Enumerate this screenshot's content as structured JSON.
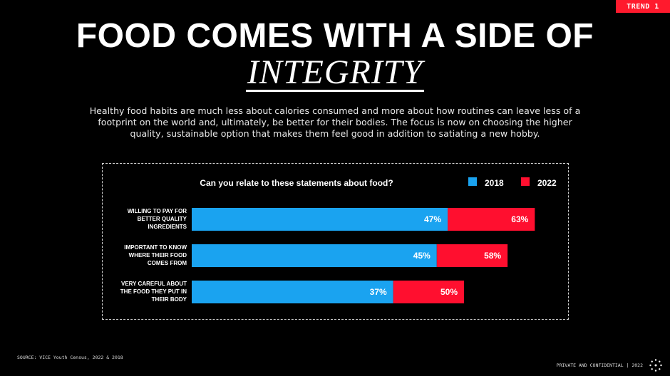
{
  "tag": "TREND 1",
  "title": "FOOD COMES WITH A SIDE OF",
  "title_emphasis": "INTEGRITY",
  "subtitle": "Healthy food habits are much less about calories consumed and more about how routines can leave less of a footprint on the world and, ultimately, be better for their bodies. The focus is now on choosing the higher quality, sustainable option that makes them feel good in addition to satiating a new hobby.",
  "source": "SOURCE: VICE Youth Census, 2022 & 2018",
  "confidential": "PRIVATE AND CONFIDENTIAL | 2022",
  "colors": {
    "series_2018": "#1aa3f0",
    "series_2022": "#ff0f2f",
    "background": "#000000",
    "accent": "#ff1a2d"
  },
  "chart_data": {
    "type": "bar",
    "orientation": "horizontal",
    "title": "Can you relate to these statements about food?",
    "categories": [
      [
        "WILLING TO PAY FOR",
        "BETTER QUALITY",
        "INGREDIENTS"
      ],
      [
        "IMPORTANT TO KNOW",
        "WHERE THEIR FOOD",
        "COMES FROM"
      ],
      [
        "VERY CAREFUL ABOUT",
        "THE FOOD THEY PUT IN",
        "THEIR BODY"
      ]
    ],
    "series": [
      {
        "name": "2018",
        "values": [
          47,
          45,
          37
        ],
        "labels": [
          "47%",
          "45%",
          "37%"
        ]
      },
      {
        "name": "2022",
        "values": [
          63,
          58,
          50
        ],
        "labels": [
          "63%",
          "58%",
          "50%"
        ]
      }
    ],
    "legend_position": "top-right",
    "xlim": [
      0,
      100
    ],
    "grid": false
  }
}
